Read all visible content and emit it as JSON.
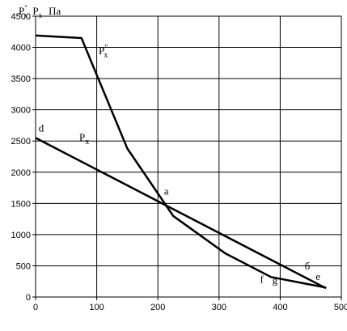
{
  "chart_data": {
    "type": "line",
    "ylabel_parts": {
      "p_double": "P",
      "p_double_sup": "\"",
      "p_double_sub": "x",
      "p": "P",
      "p_sub": "x",
      "unit": "Па"
    },
    "xlim": [
      0,
      500
    ],
    "ylim": [
      0,
      4500
    ],
    "x_ticks": [
      0,
      100,
      200,
      300,
      400,
      500
    ],
    "y_ticks": [
      0,
      500,
      1000,
      1500,
      2000,
      2500,
      3000,
      3500,
      4000,
      4500
    ],
    "grid": true,
    "series": [
      {
        "name": "P\"x",
        "name_parts": {
          "base": "P",
          "sup": "\"",
          "sub": "x"
        },
        "x": [
          0,
          75,
          150,
          225,
          310,
          385,
          475
        ],
        "y": [
          4190,
          4150,
          2380,
          1300,
          700,
          320,
          150
        ]
      },
      {
        "name": "Px",
        "name_parts": {
          "base": "P",
          "sub": "x"
        },
        "x": [
          0,
          475
        ],
        "y": [
          2550,
          140
        ]
      }
    ],
    "annotations": [
      {
        "text": "d",
        "x": 5,
        "y": 2650
      },
      {
        "text": "a",
        "x": 210,
        "y": 1640
      },
      {
        "text": "f",
        "x": 367,
        "y": 230
      },
      {
        "text": "g",
        "x": 387,
        "y": 215
      },
      {
        "text": "б",
        "x": 440,
        "y": 440
      },
      {
        "text": "e",
        "x": 458,
        "y": 270
      }
    ]
  }
}
